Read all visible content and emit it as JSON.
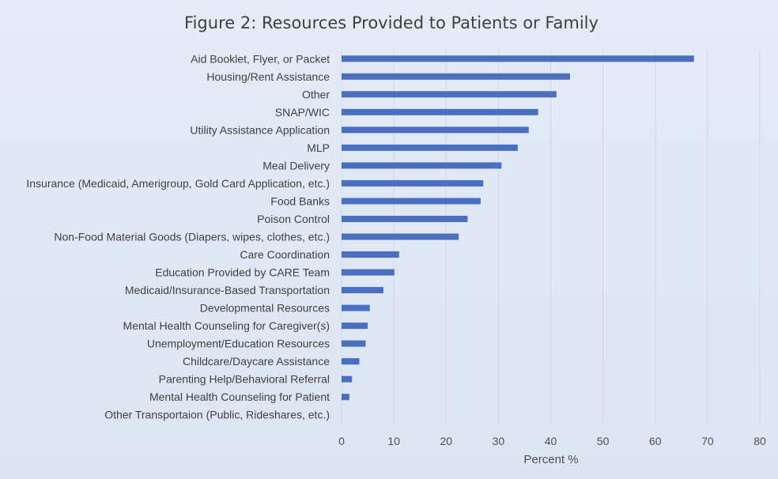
{
  "chart_data": {
    "type": "bar",
    "orientation": "horizontal",
    "title": "Figure 2: Resources Provided to Patients or Family",
    "xlabel": "Percent %",
    "ylabel": "",
    "xlim": [
      0,
      80
    ],
    "ticks": [
      0,
      10,
      20,
      30,
      40,
      50,
      60,
      70,
      80
    ],
    "grid": true,
    "bar_color": "#4a6fc1",
    "categories": [
      "Aid Booklet, Flyer, or Packet",
      "Housing/Rent Assistance",
      "Other",
      "SNAP/WIC",
      "Utility Assistance Application",
      "MLP",
      "Meal Delivery",
      "Insurance (Medicaid, Amerigroup, Gold Card Application, etc.)",
      "Food Banks",
      "Poison Control",
      "Non-Food Material Goods (Diapers, wipes, clothes, etc.)",
      "Care Coordination",
      "Education Provided by CARE Team",
      "Medicaid/Insurance-Based Transportation",
      "Developmental Resources",
      "Mental Health Counseling for Caregiver(s)",
      "Unemployment/Education Resources",
      "Childcare/Daycare Assistance",
      "Parenting Help/Behavioral Referral",
      "Mental Health Counseling for Patient",
      "Other Transportaion (Public, Rideshares, etc.)"
    ],
    "values": [
      67.4,
      43.7,
      41.1,
      37.6,
      35.8,
      33.7,
      30.6,
      27.1,
      26.6,
      24.1,
      22.4,
      11.0,
      10.1,
      8.0,
      5.4,
      5.0,
      4.6,
      3.4,
      2.0,
      1.5,
      0
    ]
  }
}
